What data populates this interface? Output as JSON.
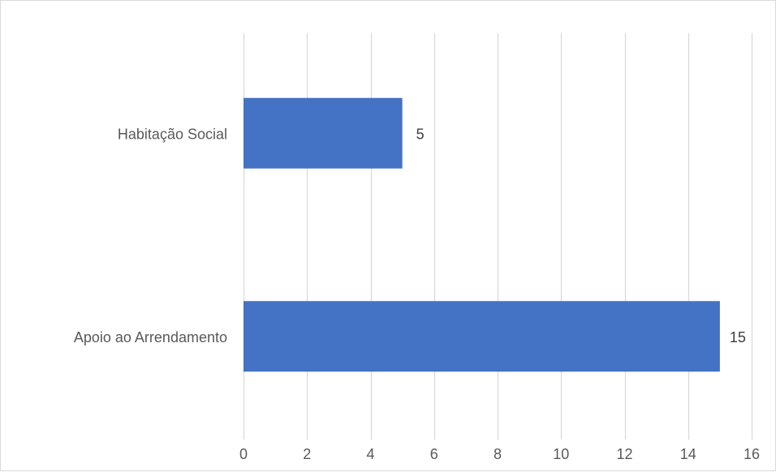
{
  "chart_data": {
    "type": "bar",
    "orientation": "horizontal",
    "categories": [
      "Habitação Social",
      "Apoio ao Arrendamento"
    ],
    "values": [
      5,
      15
    ],
    "title": "",
    "xlabel": "",
    "ylabel": "",
    "xlim": [
      0,
      16
    ],
    "x_ticks": [
      0,
      2,
      4,
      6,
      8,
      10,
      12,
      14,
      16
    ],
    "grid": "vertical",
    "data_labels": true,
    "legend": "none",
    "colors": {
      "bar": "#4472c4",
      "grid": "#d9d9d9",
      "text": "#595959"
    }
  }
}
